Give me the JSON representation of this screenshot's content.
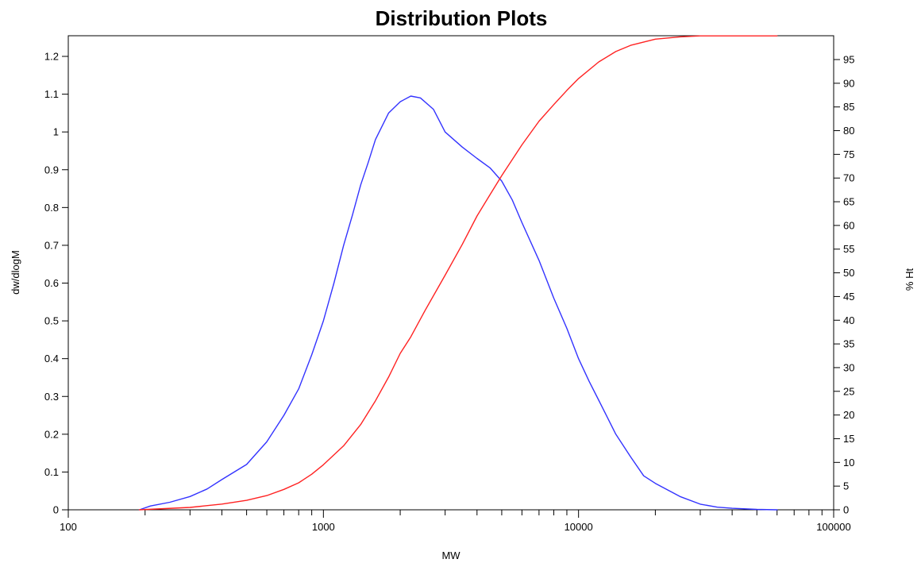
{
  "chart_data": {
    "type": "line",
    "title": "Distribution Plots",
    "xlabel": "MW",
    "ylabel": "dw/dlogM",
    "y2label": "% Ht",
    "x_scale": "log",
    "xlim": [
      100,
      100000
    ],
    "ylim": [
      0,
      1.25
    ],
    "y2lim": [
      0,
      100
    ],
    "x_tick_labels": [
      "100",
      "1000",
      "10000",
      "100000"
    ],
    "y_tick_labels": [
      "0",
      "0.1",
      "0.2",
      "0.3",
      "0.4",
      "0.5",
      "0.6",
      "0.7",
      "0.8",
      "0.9",
      "1",
      "1.1",
      "1.2"
    ],
    "y2_tick_labels": [
      "0",
      "5",
      "10",
      "15",
      "20",
      "25",
      "30",
      "35",
      "40",
      "45",
      "50",
      "55",
      "60",
      "65",
      "70",
      "75",
      "80",
      "85",
      "90",
      "95"
    ],
    "grid": false,
    "series": [
      {
        "axis": "left",
        "color": "#3333ff",
        "points": [
          [
            190,
            0
          ],
          [
            210,
            0.01
          ],
          [
            250,
            0.02
          ],
          [
            300,
            0.035
          ],
          [
            350,
            0.055
          ],
          [
            400,
            0.08
          ],
          [
            500,
            0.12
          ],
          [
            600,
            0.18
          ],
          [
            700,
            0.25
          ],
          [
            800,
            0.32
          ],
          [
            900,
            0.41
          ],
          [
            1000,
            0.5
          ],
          [
            1100,
            0.6
          ],
          [
            1200,
            0.7
          ],
          [
            1300,
            0.78
          ],
          [
            1400,
            0.86
          ],
          [
            1500,
            0.92
          ],
          [
            1600,
            0.98
          ],
          [
            1800,
            1.05
          ],
          [
            2000,
            1.08
          ],
          [
            2200,
            1.095
          ],
          [
            2400,
            1.09
          ],
          [
            2700,
            1.06
          ],
          [
            3000,
            1.0
          ],
          [
            3500,
            0.96
          ],
          [
            4000,
            0.93
          ],
          [
            4500,
            0.905
          ],
          [
            5000,
            0.87
          ],
          [
            5500,
            0.82
          ],
          [
            6000,
            0.76
          ],
          [
            7000,
            0.66
          ],
          [
            8000,
            0.56
          ],
          [
            9000,
            0.48
          ],
          [
            10000,
            0.4
          ],
          [
            11000,
            0.34
          ],
          [
            12000,
            0.29
          ],
          [
            14000,
            0.2
          ],
          [
            16000,
            0.14
          ],
          [
            18000,
            0.09
          ],
          [
            20000,
            0.07
          ],
          [
            25000,
            0.035
          ],
          [
            30000,
            0.015
          ],
          [
            35000,
            0.007
          ],
          [
            40000,
            0.004
          ],
          [
            50000,
            0.001
          ],
          [
            60000,
            0
          ]
        ]
      },
      {
        "axis": "right",
        "color": "#ff2222",
        "points": [
          [
            190,
            0
          ],
          [
            300,
            0.5
          ],
          [
            400,
            1.2
          ],
          [
            500,
            2
          ],
          [
            600,
            3
          ],
          [
            700,
            4.3
          ],
          [
            800,
            5.7
          ],
          [
            900,
            7.5
          ],
          [
            1000,
            9.5
          ],
          [
            1200,
            13.5
          ],
          [
            1400,
            18
          ],
          [
            1600,
            23
          ],
          [
            1800,
            28
          ],
          [
            2000,
            33
          ],
          [
            2200,
            36.5
          ],
          [
            2500,
            42
          ],
          [
            3000,
            49.5
          ],
          [
            3500,
            56
          ],
          [
            4000,
            62
          ],
          [
            4500,
            66.5
          ],
          [
            5000,
            70.5
          ],
          [
            6000,
            77
          ],
          [
            7000,
            82
          ],
          [
            8000,
            85.5
          ],
          [
            9000,
            88.5
          ],
          [
            10000,
            91
          ],
          [
            12000,
            94.5
          ],
          [
            14000,
            96.7
          ],
          [
            16000,
            98
          ],
          [
            20000,
            99.3
          ],
          [
            25000,
            99.8
          ],
          [
            30000,
            100
          ],
          [
            40000,
            100
          ],
          [
            60000,
            100
          ]
        ]
      }
    ]
  }
}
